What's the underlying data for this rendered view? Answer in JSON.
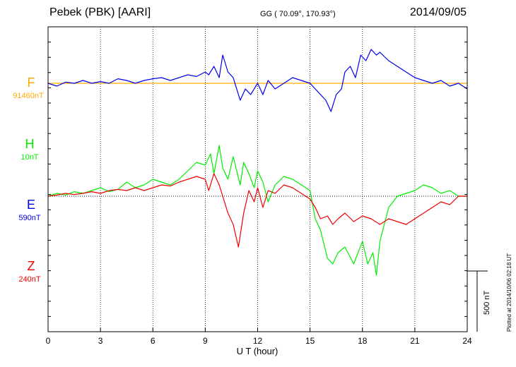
{
  "header": {
    "station": "Pebek (PBK)  [AARI]",
    "coords": "GG ( 70.09°, 170.93°)",
    "date": "2014/09/05"
  },
  "plotted_note": "Plotted at 2014/10/06 02:18 UT",
  "scale_label": "500 nT",
  "chart_data": {
    "type": "line",
    "title": "Pebek (PBK)  [AARI]",
    "xlabel": "U T (hour)",
    "xlim": [
      0,
      24
    ],
    "xticks": [
      "0",
      "3",
      "6",
      "9",
      "12",
      "15",
      "18",
      "21",
      "24"
    ],
    "scale_bar_nT": 500,
    "series": [
      {
        "name": "F",
        "baseline_label": "91460nT",
        "color": "#ffaa00",
        "ylim": [
          -440,
          100
        ],
        "x": [
          0,
          24
        ],
        "values": [
          0,
          0
        ]
      },
      {
        "name": "H",
        "baseline_label": "10nT",
        "color": "#00ee00",
        "ylim": [
          -240,
          300
        ],
        "x": [
          0,
          0.5,
          1,
          1.5,
          2,
          2.5,
          3,
          3.5,
          4,
          4.5,
          5,
          5.5,
          6,
          6.5,
          7,
          7.5,
          8,
          8.5,
          9,
          9.3,
          9.5,
          9.8,
          10,
          10.3,
          10.6,
          11,
          11.2,
          11.5,
          11.8,
          12,
          12.3,
          12.6,
          13,
          13.5,
          14,
          14.5,
          15,
          15.3,
          15.6,
          16,
          16.3,
          16.6,
          17,
          17.5,
          18,
          18.3,
          18.6,
          18.8,
          19,
          19.5,
          20,
          20.5,
          21,
          21.5,
          22,
          22.5,
          23,
          23.5,
          24
        ],
        "values": [
          0,
          5,
          2,
          8,
          5,
          10,
          15,
          8,
          12,
          25,
          15,
          20,
          30,
          25,
          20,
          30,
          45,
          60,
          55,
          75,
          40,
          90,
          50,
          30,
          70,
          20,
          60,
          40,
          15,
          45,
          25,
          -10,
          20,
          35,
          30,
          20,
          10,
          -40,
          -60,
          -110,
          -120,
          -100,
          -90,
          -120,
          -80,
          -120,
          -100,
          -140,
          -80,
          -20,
          0,
          5,
          10,
          20,
          15,
          5,
          10,
          0,
          0
        ]
      },
      {
        "name": "E",
        "baseline_label": "590nT",
        "color": "#0000ee",
        "ylim": [
          -440,
          100
        ],
        "x": [
          0,
          0.5,
          1,
          1.5,
          2,
          2.5,
          3,
          3.5,
          4,
          4.5,
          5,
          5.5,
          6,
          6.5,
          7,
          7.5,
          8,
          8.5,
          9,
          9.2,
          9.5,
          9.8,
          10,
          10.3,
          10.6,
          11,
          11.3,
          11.6,
          12,
          12.3,
          12.6,
          13,
          13.5,
          14,
          14.5,
          15,
          15.3,
          15.6,
          15.9,
          16.2,
          16.5,
          16.8,
          17,
          17.3,
          17.6,
          17.9,
          18.2,
          18.5,
          18.8,
          19,
          19.5,
          20,
          20.5,
          21,
          21.5,
          22,
          22.5,
          23,
          23.5,
          24
        ],
        "values": [
          0,
          -5,
          2,
          0,
          5,
          0,
          3,
          0,
          8,
          5,
          0,
          5,
          8,
          10,
          5,
          10,
          15,
          12,
          20,
          15,
          30,
          10,
          50,
          20,
          10,
          -30,
          -10,
          -20,
          0,
          -20,
          5,
          -10,
          0,
          10,
          5,
          0,
          -10,
          -20,
          -30,
          -50,
          -20,
          -10,
          20,
          30,
          10,
          50,
          40,
          60,
          50,
          55,
          40,
          30,
          20,
          10,
          5,
          0,
          5,
          -5,
          0,
          -10
        ]
      },
      {
        "name": "Z",
        "baseline_label": "240nT",
        "color": "#ee0000",
        "ylim": [
          -240,
          300
        ],
        "x": [
          0,
          0.5,
          1,
          1.5,
          2,
          2.5,
          3,
          3.5,
          4,
          4.5,
          5,
          5.5,
          6,
          6.5,
          7,
          7.5,
          8,
          8.5,
          9,
          9.2,
          9.5,
          9.8,
          10,
          10.3,
          10.6,
          10.9,
          11.2,
          11.5,
          11.8,
          12,
          12.3,
          12.6,
          13,
          13.5,
          14,
          14.5,
          15,
          15.3,
          15.6,
          16,
          16.3,
          16.6,
          17,
          17.5,
          18,
          18.5,
          19,
          19.5,
          20,
          20.5,
          21,
          21.5,
          22,
          22.5,
          23,
          23.5,
          24
        ],
        "values": [
          0,
          2,
          5,
          3,
          5,
          8,
          5,
          10,
          12,
          10,
          15,
          10,
          15,
          20,
          18,
          25,
          30,
          35,
          30,
          10,
          40,
          20,
          0,
          -30,
          -50,
          -90,
          -30,
          10,
          -10,
          15,
          -20,
          10,
          5,
          20,
          15,
          5,
          -5,
          -20,
          -40,
          -35,
          -50,
          -40,
          -30,
          -45,
          -35,
          -40,
          -50,
          -40,
          -45,
          -50,
          -40,
          -30,
          -20,
          -10,
          -15,
          0,
          0
        ]
      }
    ]
  }
}
